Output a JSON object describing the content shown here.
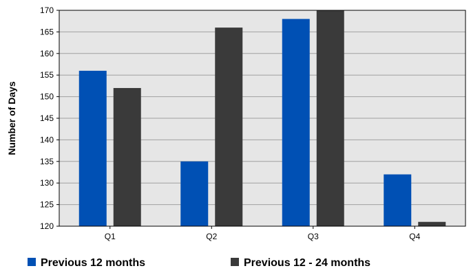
{
  "chart_data": {
    "type": "bar",
    "categories": [
      "Q1",
      "Q2",
      "Q3",
      "Q4"
    ],
    "series": [
      {
        "name": "Previous 12 months",
        "values": [
          156,
          135,
          168,
          132
        ],
        "color": "#0050B4"
      },
      {
        "name": "Previous 12 - 24 months",
        "values": [
          152,
          166,
          170,
          121
        ],
        "color": "#3A3A3A"
      }
    ],
    "title": "",
    "xlabel": "",
    "ylabel": "Number of Days",
    "ylim": [
      120,
      170
    ],
    "yticks": [
      120,
      125,
      130,
      135,
      140,
      145,
      150,
      155,
      160,
      165,
      170
    ],
    "grid": true,
    "legend_position": "bottom",
    "plot_background": "#E6E6E6"
  }
}
